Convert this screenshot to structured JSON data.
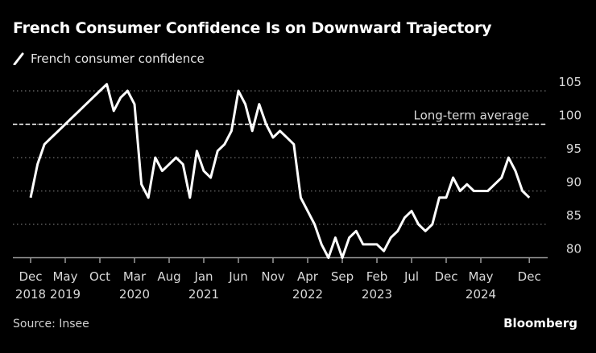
{
  "header": {
    "title": "French Consumer Confidence Is on Downward Trajectory"
  },
  "footer": {
    "source": "Source: Insee",
    "brand": "Bloomberg"
  },
  "colors": {
    "background": "#000000",
    "line": "#ffffff",
    "grid": "#777777",
    "text": "#d9d9d9"
  },
  "chart_data": {
    "type": "line",
    "title": "French Consumer Confidence Is on Downward Trajectory",
    "xlabel": "",
    "ylabel": "",
    "ylim": [
      80,
      106
    ],
    "y_ticks": [
      80,
      85,
      90,
      95,
      100,
      105
    ],
    "y_axis_side": "right",
    "grid": true,
    "legend_placement": "top-left",
    "x_ticks": [
      {
        "date": "2018-12",
        "month": "Dec",
        "year": "2018"
      },
      {
        "date": "2019-05",
        "month": "May",
        "year": "2019"
      },
      {
        "date": "2019-10",
        "month": "Oct",
        "year": ""
      },
      {
        "date": "2020-03",
        "month": "Mar",
        "year": "2020"
      },
      {
        "date": "2020-08",
        "month": "Aug",
        "year": ""
      },
      {
        "date": "2021-01",
        "month": "Jan",
        "year": "2021"
      },
      {
        "date": "2021-06",
        "month": "Jun",
        "year": ""
      },
      {
        "date": "2021-11",
        "month": "Nov",
        "year": ""
      },
      {
        "date": "2022-04",
        "month": "Apr",
        "year": "2022"
      },
      {
        "date": "2022-09",
        "month": "Sep",
        "year": ""
      },
      {
        "date": "2023-02",
        "month": "Feb",
        "year": "2023"
      },
      {
        "date": "2023-07",
        "month": "Jul",
        "year": ""
      },
      {
        "date": "2023-12",
        "month": "Dec",
        "year": ""
      },
      {
        "date": "2024-05",
        "month": "May",
        "year": "2024"
      },
      {
        "date": "2024-12",
        "month": "Dec",
        "year": ""
      }
    ],
    "reference_line": {
      "label": "Long-term average",
      "value": 100,
      "style": "dashed"
    },
    "series": [
      {
        "name": "French consumer confidence",
        "x": [
          "2018-12",
          "2019-01",
          "2019-02",
          "2019-03",
          "2019-04",
          "2019-05",
          "2019-06",
          "2019-07",
          "2019-08",
          "2019-09",
          "2019-10",
          "2019-11",
          "2019-12",
          "2020-01",
          "2020-02",
          "2020-03",
          "2020-04",
          "2020-05",
          "2020-06",
          "2020-07",
          "2020-08",
          "2020-09",
          "2020-10",
          "2020-11",
          "2020-12",
          "2021-01",
          "2021-02",
          "2021-03",
          "2021-04",
          "2021-05",
          "2021-06",
          "2021-07",
          "2021-08",
          "2021-09",
          "2021-10",
          "2021-11",
          "2021-12",
          "2022-01",
          "2022-02",
          "2022-03",
          "2022-04",
          "2022-05",
          "2022-06",
          "2022-07",
          "2022-08",
          "2022-09",
          "2022-10",
          "2022-11",
          "2022-12",
          "2023-01",
          "2023-02",
          "2023-03",
          "2023-04",
          "2023-05",
          "2023-06",
          "2023-07",
          "2023-08",
          "2023-09",
          "2023-10",
          "2023-11",
          "2023-12",
          "2024-01",
          "2024-02",
          "2024-03",
          "2024-04",
          "2024-05",
          "2024-06",
          "2024-07",
          "2024-08",
          "2024-09",
          "2024-10",
          "2024-11",
          "2024-12"
        ],
        "values": [
          89,
          94,
          97,
          98,
          99,
          100,
          101,
          102,
          103,
          104,
          105,
          106,
          102,
          104,
          105,
          103,
          91,
          89,
          95,
          93,
          94,
          95,
          94,
          89,
          96,
          93,
          92,
          96,
          97,
          99,
          105,
          103,
          99,
          103,
          100,
          98,
          99,
          98,
          97,
          89,
          87,
          85,
          82,
          80,
          83,
          80,
          83,
          84,
          82,
          82,
          82,
          81,
          83,
          84,
          86,
          87,
          85,
          84,
          85,
          89,
          89,
          92,
          90,
          91,
          90,
          90,
          90,
          91,
          92,
          95,
          93,
          90,
          89
        ]
      }
    ]
  }
}
